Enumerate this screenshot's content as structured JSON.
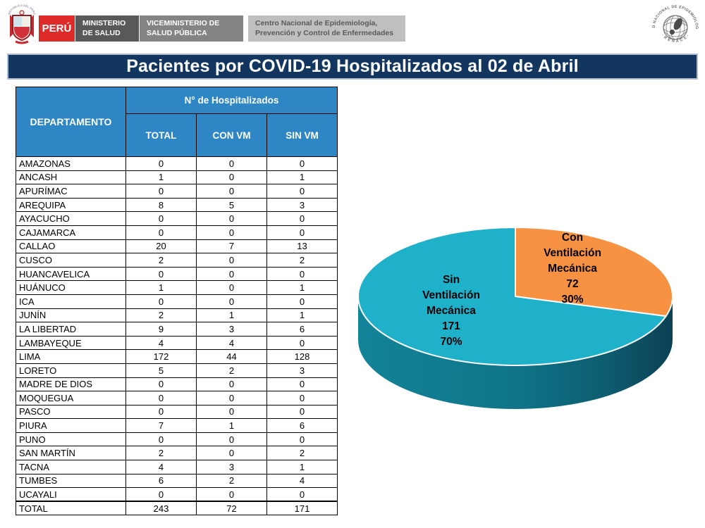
{
  "header": {
    "peru_label": "PERÚ",
    "ministry_line1": "MINISTERIO",
    "ministry_line2": "DE SALUD",
    "vice_line1": "VICEMINISTERIO DE",
    "vice_line2": "SALUD PÚBLICA",
    "center_line1": "Centro Nacional de Epidemiología,",
    "center_line2": "Prevención y Control de Enfermedades",
    "renace_arc_top": "RED NACIONAL DE EPIDEMIOLOGIA",
    "renace_arc_bottom": "· R E N A C E ·"
  },
  "title": "Pacientes por COVID-19 Hospitalizados al 02 de Abril",
  "table": {
    "col_departamento": "DEPARTAMENTO",
    "group_header": "N° de Hospitalizados",
    "cols": [
      "TOTAL",
      "CON VM",
      "SIN VM"
    ],
    "rows": [
      {
        "name": "AMAZONAS",
        "total": 0,
        "con_vm": 0,
        "sin_vm": 0
      },
      {
        "name": "ANCASH",
        "total": 1,
        "con_vm": 0,
        "sin_vm": 1
      },
      {
        "name": "APURÍMAC",
        "total": 0,
        "con_vm": 0,
        "sin_vm": 0
      },
      {
        "name": "AREQUIPA",
        "total": 8,
        "con_vm": 5,
        "sin_vm": 3
      },
      {
        "name": "AYACUCHO",
        "total": 0,
        "con_vm": 0,
        "sin_vm": 0
      },
      {
        "name": "CAJAMARCA",
        "total": 0,
        "con_vm": 0,
        "sin_vm": 0
      },
      {
        "name": "CALLAO",
        "total": 20,
        "con_vm": 7,
        "sin_vm": 13
      },
      {
        "name": "CUSCO",
        "total": 2,
        "con_vm": 0,
        "sin_vm": 2
      },
      {
        "name": "HUANCAVELICA",
        "total": 0,
        "con_vm": 0,
        "sin_vm": 0
      },
      {
        "name": "HUÁNUCO",
        "total": 1,
        "con_vm": 0,
        "sin_vm": 1
      },
      {
        "name": "ICA",
        "total": 0,
        "con_vm": 0,
        "sin_vm": 0
      },
      {
        "name": "JUNÍN",
        "total": 2,
        "con_vm": 1,
        "sin_vm": 1
      },
      {
        "name": "LA LIBERTAD",
        "total": 9,
        "con_vm": 3,
        "sin_vm": 6
      },
      {
        "name": "LAMBAYEQUE",
        "total": 4,
        "con_vm": 4,
        "sin_vm": 0
      },
      {
        "name": "LIMA",
        "total": 172,
        "con_vm": 44,
        "sin_vm": 128
      },
      {
        "name": "LORETO",
        "total": 5,
        "con_vm": 2,
        "sin_vm": 3
      },
      {
        "name": "MADRE DE DIOS",
        "total": 0,
        "con_vm": 0,
        "sin_vm": 0
      },
      {
        "name": "MOQUEGUA",
        "total": 0,
        "con_vm": 0,
        "sin_vm": 0
      },
      {
        "name": "PASCO",
        "total": 0,
        "con_vm": 0,
        "sin_vm": 0
      },
      {
        "name": "PIURA",
        "total": 7,
        "con_vm": 1,
        "sin_vm": 6
      },
      {
        "name": "PUNO",
        "total": 0,
        "con_vm": 0,
        "sin_vm": 0
      },
      {
        "name": "SAN MARTÍN",
        "total": 2,
        "con_vm": 0,
        "sin_vm": 2
      },
      {
        "name": "TACNA",
        "total": 4,
        "con_vm": 3,
        "sin_vm": 1
      },
      {
        "name": "TUMBES",
        "total": 6,
        "con_vm": 2,
        "sin_vm": 4
      },
      {
        "name": "UCAYALI",
        "total": 0,
        "con_vm": 0,
        "sin_vm": 0
      }
    ],
    "total_row": {
      "name": "TOTAL",
      "total": 243,
      "con_vm": 72,
      "sin_vm": 171
    }
  },
  "chart_data": {
    "type": "pie",
    "title": "Pacientes por COVID-19 Hospitalizados al 02 de Abril",
    "style": "3d",
    "slices": [
      {
        "label": "Con Ventilación Mecánica",
        "value": 72,
        "pct": "30%",
        "color": "#F79243"
      },
      {
        "label": "Sin Ventilación Mecánica",
        "value": 171,
        "pct": "70%",
        "color": "#1FB0CA"
      }
    ],
    "start_angle_deg": 0,
    "direction": "clockwise",
    "legend_position": "none"
  },
  "colors": {
    "header_blue": "#2E86C5",
    "title_navy": "#12365F",
    "peru_red": "#DE2A29",
    "gray_dark": "#595959",
    "gray_mid": "#848484",
    "gray_light": "#BFBFBF",
    "pie_cyan": "#1FB0CA",
    "pie_orange": "#F79243",
    "pie_rim_dark": "#0C4154"
  }
}
